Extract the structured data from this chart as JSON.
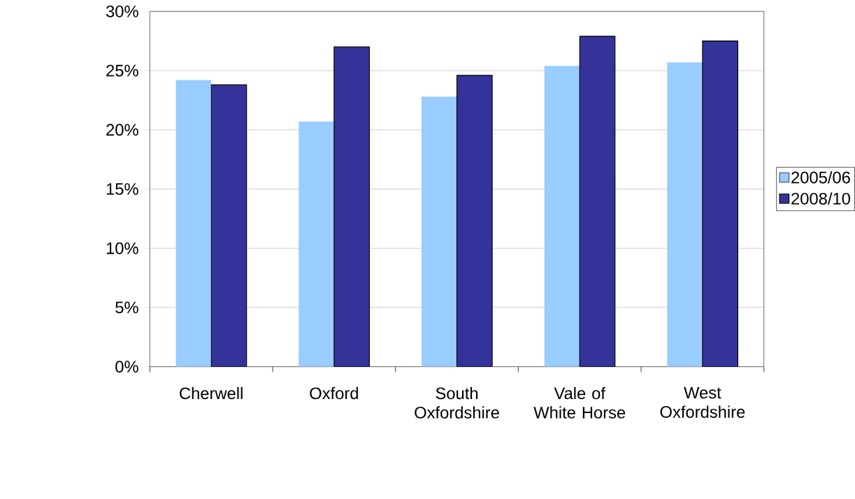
{
  "chart_data": {
    "type": "bar",
    "categories": [
      "Cherwell",
      "Oxford",
      "South Oxfordshire",
      "Vale of White Horse",
      "West Oxfordshire"
    ],
    "series": [
      {
        "name": "2005/06",
        "color": "#99ccff",
        "values": [
          24.2,
          20.7,
          22.8,
          25.4,
          25.7
        ]
      },
      {
        "name": "2008/10",
        "color": "#333399",
        "values": [
          23.8,
          27.0,
          24.6,
          27.9,
          27.5
        ]
      }
    ],
    "ylim": [
      0,
      30
    ],
    "yticks": [
      {
        "value": 0,
        "label": "0%"
      },
      {
        "value": 5,
        "label": "5%"
      },
      {
        "value": 10,
        "label": "10%"
      },
      {
        "value": 15,
        "label": "15%"
      },
      {
        "value": 20,
        "label": "20%"
      },
      {
        "value": 25,
        "label": "25%"
      },
      {
        "value": 30,
        "label": "30%"
      }
    ],
    "grid": "y",
    "legend": "right"
  }
}
